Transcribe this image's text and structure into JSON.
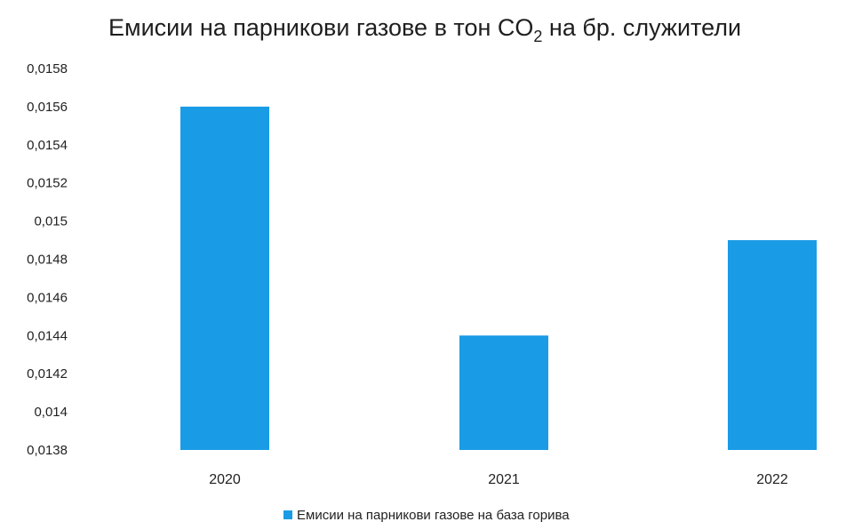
{
  "chart_data": {
    "type": "bar",
    "title_parts": {
      "before": "Емисии на парникови газове в тон CO",
      "subscript": "2",
      "after": " на бр. служители"
    },
    "categories": [
      "2020",
      "2021",
      "2022"
    ],
    "series": [
      {
        "name": "Емисии на парникови газове на база горива",
        "values": [
          0.0156,
          0.0144,
          0.0149
        ],
        "color": "#1a9be6"
      }
    ],
    "ylim": [
      0.0138,
      0.0158
    ],
    "yticks": [
      "0,0138",
      "0,014",
      "0,0142",
      "0,0144",
      "0,0146",
      "0,0148",
      "0,015",
      "0,0152",
      "0,0154",
      "0,0156",
      "0,0158"
    ],
    "grid": false,
    "legend_position": "bottom"
  }
}
